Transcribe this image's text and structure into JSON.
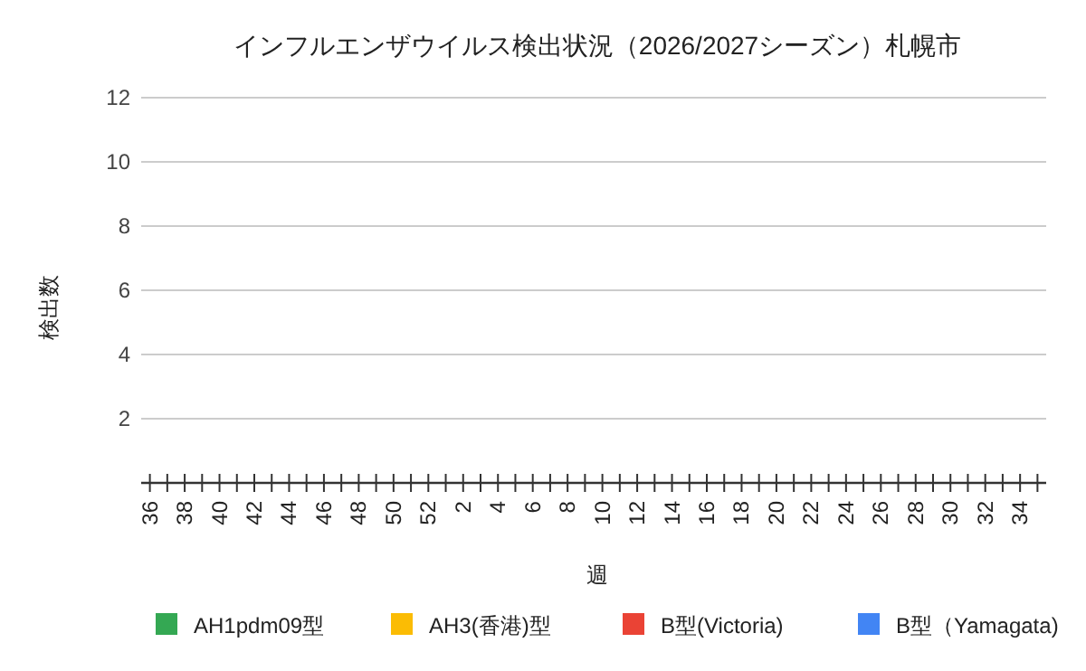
{
  "chart_data": {
    "type": "bar",
    "title": "インフルエンザウイルス検出状況（2026/2027シーズン）札幌市",
    "xlabel": "週",
    "ylabel": "検出数",
    "categories": [
      "36",
      null,
      "38",
      null,
      "40",
      null,
      "42",
      null,
      "44",
      null,
      "46",
      null,
      "48",
      null,
      "50",
      null,
      "52",
      null,
      "2",
      null,
      "4",
      null,
      "6",
      null,
      "8",
      null,
      "10",
      null,
      "12",
      null,
      "14",
      null,
      "16",
      null,
      "18",
      null,
      "20",
      null,
      "22",
      null,
      "24",
      null,
      "26",
      null,
      "28",
      null,
      "30",
      null,
      "32",
      null,
      "34",
      null
    ],
    "series": [
      {
        "name": "AH1pdm09型",
        "color": "#34a853",
        "values": [
          0,
          0,
          0,
          0,
          0,
          0,
          0,
          0,
          0,
          0,
          0,
          0,
          0,
          0,
          0,
          0,
          0,
          0,
          0,
          0,
          0,
          0,
          0,
          0,
          0,
          0,
          0,
          0,
          0,
          0,
          0,
          0,
          0,
          0,
          0,
          0,
          0,
          0,
          0,
          0,
          0,
          0,
          0,
          0,
          0,
          0,
          0,
          0,
          0,
          0,
          0,
          0
        ]
      },
      {
        "name": "AH3(香港)型",
        "color": "#fbbc04",
        "values": [
          0,
          0,
          0,
          0,
          0,
          0,
          0,
          0,
          0,
          0,
          0,
          0,
          0,
          0,
          0,
          0,
          0,
          0,
          0,
          0,
          0,
          0,
          0,
          0,
          0,
          0,
          0,
          0,
          0,
          0,
          0,
          0,
          0,
          0,
          0,
          0,
          0,
          0,
          0,
          0,
          0,
          0,
          0,
          0,
          0,
          0,
          0,
          0,
          0,
          0,
          0,
          0
        ]
      },
      {
        "name": "B型(Victoria)",
        "color": "#ea4335",
        "values": [
          0,
          0,
          0,
          0,
          0,
          0,
          0,
          0,
          0,
          0,
          0,
          0,
          0,
          0,
          0,
          0,
          0,
          0,
          0,
          0,
          0,
          0,
          0,
          0,
          0,
          0,
          0,
          0,
          0,
          0,
          0,
          0,
          0,
          0,
          0,
          0,
          0,
          0,
          0,
          0,
          0,
          0,
          0,
          0,
          0,
          0,
          0,
          0,
          0,
          0,
          0,
          0
        ]
      },
      {
        "name": "B型（Yamagata)",
        "color": "#4285f4",
        "values": [
          0,
          0,
          0,
          0,
          0,
          0,
          0,
          0,
          0,
          0,
          0,
          0,
          0,
          0,
          0,
          0,
          0,
          0,
          0,
          0,
          0,
          0,
          0,
          0,
          0,
          0,
          0,
          0,
          0,
          0,
          0,
          0,
          0,
          0,
          0,
          0,
          0,
          0,
          0,
          0,
          0,
          0,
          0,
          0,
          0,
          0,
          0,
          0,
          0,
          0,
          0,
          0
        ]
      }
    ],
    "ylim": [
      0,
      12
    ],
    "yticks": [
      {
        "value": 0,
        "label": null
      },
      2,
      4,
      6,
      8,
      10,
      12
    ],
    "grid": "y",
    "legend": "bottom"
  }
}
